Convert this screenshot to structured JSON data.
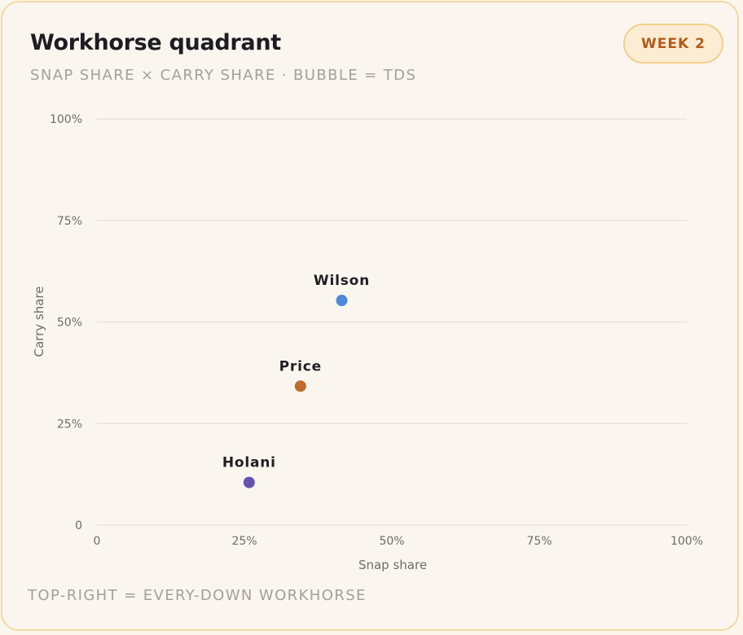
{
  "header": {
    "title": "Workhorse quadrant",
    "subtitle": "SNAP SHARE × CARRY SHARE · BUBBLE = TDS",
    "badge": "WEEK 2"
  },
  "footer": "TOP-RIGHT = EVERY-DOWN WORKHORSE",
  "colors": {
    "grid": "#e8e3dc",
    "Wilson": "#4a8ad8",
    "Price": "#bf6a2c",
    "Holani": "#6354b0"
  },
  "chart_data": {
    "type": "scatter",
    "xlabel": "Snap share",
    "ylabel": "Carry share",
    "xlim": [
      0,
      100
    ],
    "ylim": [
      0,
      100
    ],
    "x_ticks": [
      "0",
      "25%",
      "50%",
      "75%",
      "100%"
    ],
    "y_ticks": [
      "0",
      "25%",
      "50%",
      "75%",
      "100%"
    ],
    "grid": true,
    "points": [
      {
        "label": "Wilson",
        "x": 41.5,
        "y": 55.3
      },
      {
        "label": "Price",
        "x": 34.5,
        "y": 34.2
      },
      {
        "label": "Holani",
        "x": 25.8,
        "y": 10.5
      }
    ]
  }
}
